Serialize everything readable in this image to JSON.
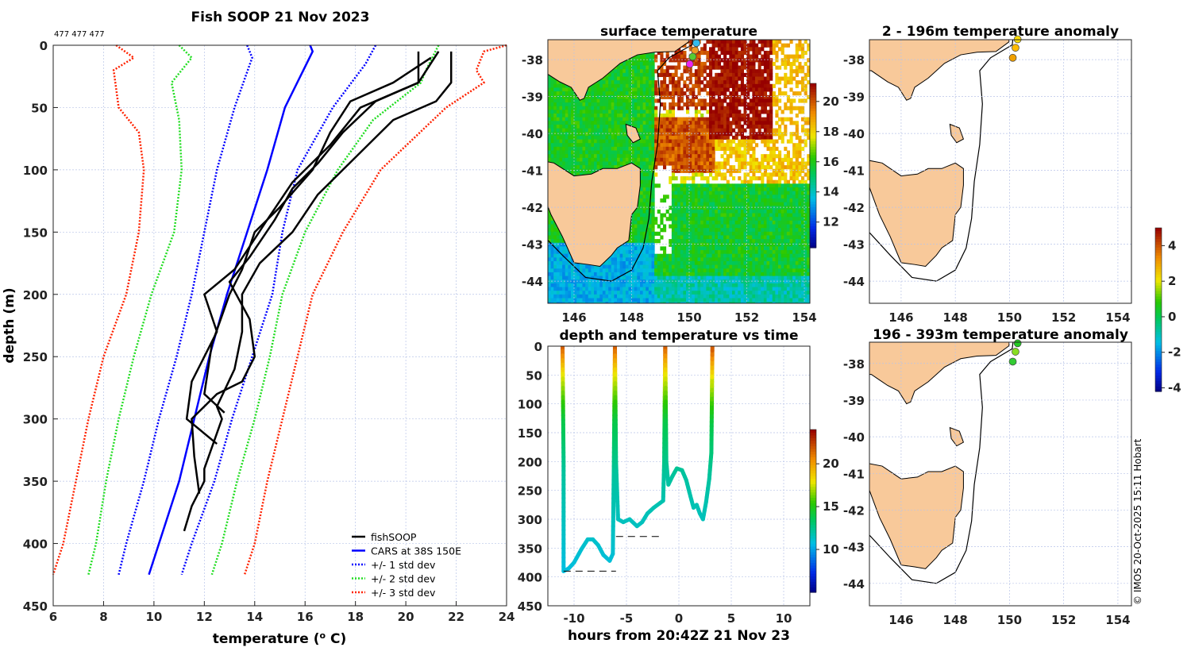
{
  "title": "Fish SOOP 21 Nov 2023",
  "profile_ids": "477 477 477",
  "credit": "© IMOS 20-Oct-2025 15:11 Hobart",
  "colors": {
    "fishsoop": "#000000",
    "cars": "#0000ff",
    "sd1": "#0000ff",
    "sd2": "#22dd22",
    "sd3": "#ff2200",
    "land": "#f8c99a"
  },
  "chart_data": [
    {
      "id": "profile",
      "type": "line",
      "xlabel": "temperature (",
      "xlabel_sup": "o",
      "xlabel_end": " C)",
      "ylabel": "depth (m)",
      "xlim": [
        6,
        24
      ],
      "ylim": [
        450,
        0
      ],
      "xticks": [
        6,
        8,
        10,
        12,
        14,
        16,
        18,
        20,
        22,
        24
      ],
      "yticks": [
        0,
        50,
        100,
        150,
        200,
        250,
        300,
        350,
        400,
        450
      ],
      "grid": true,
      "legend_position": "bottom-right",
      "legend": [
        "fishSOOP",
        "CARS at 38S 150E",
        "+/- 1 std dev",
        "+/- 2 std dev",
        "+/- 3 std dev"
      ],
      "cars_mean": [
        [
          16.2,
          0
        ],
        [
          16.3,
          5
        ],
        [
          15.2,
          50
        ],
        [
          14.5,
          100
        ],
        [
          13.7,
          150
        ],
        [
          12.9,
          200
        ],
        [
          12.2,
          250
        ],
        [
          11.6,
          300
        ],
        [
          11.0,
          350
        ],
        [
          10.2,
          400
        ],
        [
          9.8,
          425
        ]
      ],
      "sd1_low": [
        [
          13.7,
          0
        ],
        [
          13.9,
          10
        ],
        [
          13.2,
          50
        ],
        [
          12.5,
          100
        ],
        [
          12.0,
          150
        ],
        [
          11.5,
          200
        ],
        [
          10.9,
          250
        ],
        [
          10.2,
          300
        ],
        [
          9.6,
          350
        ],
        [
          8.9,
          400
        ],
        [
          8.6,
          425
        ]
      ],
      "sd1_high": [
        [
          18.8,
          0
        ],
        [
          18.4,
          15
        ],
        [
          17.1,
          50
        ],
        [
          15.7,
          100
        ],
        [
          15.1,
          150
        ],
        [
          14.7,
          200
        ],
        [
          13.9,
          250
        ],
        [
          13.1,
          300
        ],
        [
          12.4,
          350
        ],
        [
          11.5,
          400
        ],
        [
          11.1,
          425
        ]
      ],
      "sd2_low": [
        [
          11.0,
          0
        ],
        [
          11.5,
          10
        ],
        [
          10.7,
          30
        ],
        [
          11.0,
          60
        ],
        [
          11.1,
          100
        ],
        [
          10.8,
          150
        ],
        [
          9.9,
          200
        ],
        [
          9.2,
          250
        ],
        [
          8.6,
          300
        ],
        [
          8.1,
          350
        ],
        [
          7.7,
          400
        ],
        [
          7.4,
          425
        ]
      ],
      "sd2_high": [
        [
          21.3,
          0
        ],
        [
          20.8,
          20
        ],
        [
          20.6,
          30
        ],
        [
          18.7,
          60
        ],
        [
          17.3,
          100
        ],
        [
          16.0,
          150
        ],
        [
          15.1,
          200
        ],
        [
          14.6,
          250
        ],
        [
          14.0,
          300
        ],
        [
          13.3,
          350
        ],
        [
          12.7,
          400
        ],
        [
          12.3,
          425
        ]
      ],
      "sd3_low": [
        [
          8.5,
          0
        ],
        [
          9.2,
          10
        ],
        [
          8.4,
          20
        ],
        [
          8.6,
          50
        ],
        [
          9.4,
          70
        ],
        [
          9.6,
          100
        ],
        [
          9.4,
          150
        ],
        [
          8.9,
          200
        ],
        [
          8.0,
          250
        ],
        [
          7.4,
          300
        ],
        [
          6.9,
          350
        ],
        [
          6.4,
          400
        ],
        [
          6.0,
          425
        ]
      ],
      "sd3_high": [
        [
          24.0,
          0
        ],
        [
          23.1,
          5
        ],
        [
          22.8,
          20
        ],
        [
          23.1,
          30
        ],
        [
          21.6,
          50
        ],
        [
          19.0,
          100
        ],
        [
          17.5,
          150
        ],
        [
          16.3,
          200
        ],
        [
          15.7,
          250
        ],
        [
          15.1,
          300
        ],
        [
          14.5,
          350
        ],
        [
          14.0,
          400
        ],
        [
          13.6,
          425
        ]
      ],
      "fishsoop_profiles": [
        [
          [
            21.8,
            5
          ],
          [
            21.8,
            30
          ],
          [
            21.2,
            45
          ],
          [
            19.5,
            60
          ],
          [
            18.5,
            80
          ],
          [
            17.5,
            100
          ],
          [
            16.5,
            120
          ],
          [
            15.5,
            150
          ],
          [
            14.2,
            175
          ],
          [
            13.5,
            200
          ],
          [
            13.5,
            230
          ],
          [
            13.2,
            260
          ],
          [
            12.5,
            290
          ],
          [
            12.7,
            300
          ],
          [
            12.0,
            340
          ],
          [
            12.0,
            350
          ],
          [
            11.5,
            370
          ],
          [
            11.2,
            390
          ]
        ],
        [
          [
            20.5,
            5
          ],
          [
            20.5,
            30
          ],
          [
            18.8,
            45
          ],
          [
            17.5,
            70
          ],
          [
            16.5,
            95
          ],
          [
            15.5,
            115
          ],
          [
            14.8,
            140
          ],
          [
            13.8,
            170
          ],
          [
            13.0,
            190
          ],
          [
            13.8,
            220
          ],
          [
            14.0,
            250
          ],
          [
            13.5,
            270
          ],
          [
            12.5,
            280
          ],
          [
            11.5,
            300
          ],
          [
            11.6,
            330
          ],
          [
            11.8,
            360
          ]
        ],
        [
          [
            21.3,
            5
          ],
          [
            20.5,
            30
          ],
          [
            18.2,
            50
          ],
          [
            17.0,
            80
          ],
          [
            15.5,
            110
          ],
          [
            14.5,
            140
          ],
          [
            13.2,
            180
          ],
          [
            12.0,
            200
          ],
          [
            12.5,
            230
          ],
          [
            11.5,
            270
          ],
          [
            11.3,
            300
          ],
          [
            12.5,
            320
          ]
        ],
        [
          [
            21.0,
            10
          ],
          [
            19.5,
            30
          ],
          [
            17.8,
            45
          ],
          [
            17.0,
            70
          ],
          [
            16.3,
            100
          ],
          [
            15.0,
            130
          ],
          [
            14.0,
            150
          ],
          [
            13.5,
            180
          ],
          [
            13.0,
            200
          ],
          [
            12.3,
            240
          ],
          [
            12.0,
            280
          ],
          [
            12.8,
            295
          ]
        ]
      ]
    },
    {
      "id": "surface",
      "type": "heatmap",
      "title": "surface temperature",
      "lon_ticks": [
        146,
        148,
        150,
        152,
        154
      ],
      "lat_ticks": [
        -38,
        -39,
        -40,
        -41,
        -42,
        -43,
        -44
      ],
      "colorbar_ticks": [
        12,
        14,
        16,
        18,
        20
      ],
      "colorbar_range": [
        10.3,
        21.2
      ],
      "positions": [
        [
          150.25,
          -37.55,
          "#33bbee"
        ],
        [
          150.2,
          -37.75,
          "#ee9922"
        ],
        [
          150.12,
          -37.92,
          "#55cc33"
        ],
        [
          150.02,
          -38.12,
          "#ee22ee"
        ]
      ]
    },
    {
      "id": "time",
      "type": "line",
      "title": "depth and temperature vs time",
      "xlabel": "hours from 20:42Z 21 Nov 23",
      "xticks": [
        -10,
        -5,
        0,
        5,
        10
      ],
      "yticks": [
        0,
        50,
        100,
        150,
        200,
        250,
        300,
        350,
        400,
        450
      ],
      "xlim": [
        -12.5,
        12.5
      ],
      "ylim": [
        450,
        0
      ],
      "colorbar_ticks": [
        10,
        15,
        20
      ],
      "colorbar_range": [
        5,
        24
      ],
      "track": [
        [
          -11.1,
          0
        ],
        [
          -11.0,
          200
        ],
        [
          -11.0,
          390
        ],
        [
          -10.5,
          385
        ],
        [
          -10,
          375
        ],
        [
          -9.3,
          352
        ],
        [
          -8.7,
          335
        ],
        [
          -8.2,
          335
        ],
        [
          -7.7,
          345
        ],
        [
          -7.2,
          362
        ],
        [
          -6.6,
          372
        ],
        [
          -6.3,
          360
        ],
        [
          -6.2,
          200
        ],
        [
          -6.1,
          0
        ],
        [
          -6.0,
          200
        ],
        [
          -5.8,
          300
        ],
        [
          -5.3,
          305
        ],
        [
          -4.7,
          300
        ],
        [
          -4.0,
          312
        ],
        [
          -3.5,
          305
        ],
        [
          -3,
          290
        ],
        [
          -2.4,
          280
        ],
        [
          -1.8,
          272
        ],
        [
          -1.5,
          268
        ],
        [
          -1.4,
          200
        ],
        [
          -1.3,
          0
        ],
        [
          -1.2,
          200
        ],
        [
          -1.0,
          240
        ],
        [
          -0.6,
          225
        ],
        [
          -0.2,
          212
        ],
        [
          0.3,
          215
        ],
        [
          0.7,
          232
        ],
        [
          1.1,
          260
        ],
        [
          1.4,
          280
        ],
        [
          1.7,
          275
        ],
        [
          2.0,
          290
        ],
        [
          2.3,
          300
        ],
        [
          2.6,
          270
        ],
        [
          2.9,
          230
        ],
        [
          3.1,
          185
        ],
        [
          3.2,
          0
        ]
      ],
      "bottom_marks": [
        [
          -11,
          -6,
          390
        ],
        [
          -6,
          -1.5,
          330
        ],
        [
          -1.0,
          3.2,
          450
        ]
      ]
    },
    {
      "id": "anom_upper",
      "type": "heatmap",
      "title": "2 - 196m temperature anomaly",
      "lon_ticks": [
        146,
        148,
        150,
        152,
        154
      ],
      "lat_ticks": [
        -38,
        -39,
        -40,
        -41,
        -42,
        -43,
        -44
      ],
      "positions": [
        [
          150.3,
          -37.45,
          "#ffdd00"
        ],
        [
          150.22,
          -37.68,
          "#ffbb00"
        ],
        [
          150.12,
          -37.95,
          "#f0a000"
        ]
      ]
    },
    {
      "id": "anom_lower",
      "type": "heatmap",
      "title": "196 - 393m temperature anomaly",
      "lon_ticks": [
        146,
        148,
        150,
        152,
        154
      ],
      "lat_ticks": [
        -38,
        -39,
        -40,
        -41,
        -42,
        -43,
        -44
      ],
      "positions": [
        [
          150.3,
          -37.45,
          "#22cc22"
        ],
        [
          150.22,
          -37.68,
          "#88dd22"
        ],
        [
          150.12,
          -37.95,
          "#33cc33"
        ]
      ]
    },
    {
      "id": "anom_colorbar",
      "type": "colorbar",
      "ticks": [
        -4,
        -2,
        0,
        2,
        4
      ],
      "range": [
        -4.2,
        5
      ]
    }
  ]
}
